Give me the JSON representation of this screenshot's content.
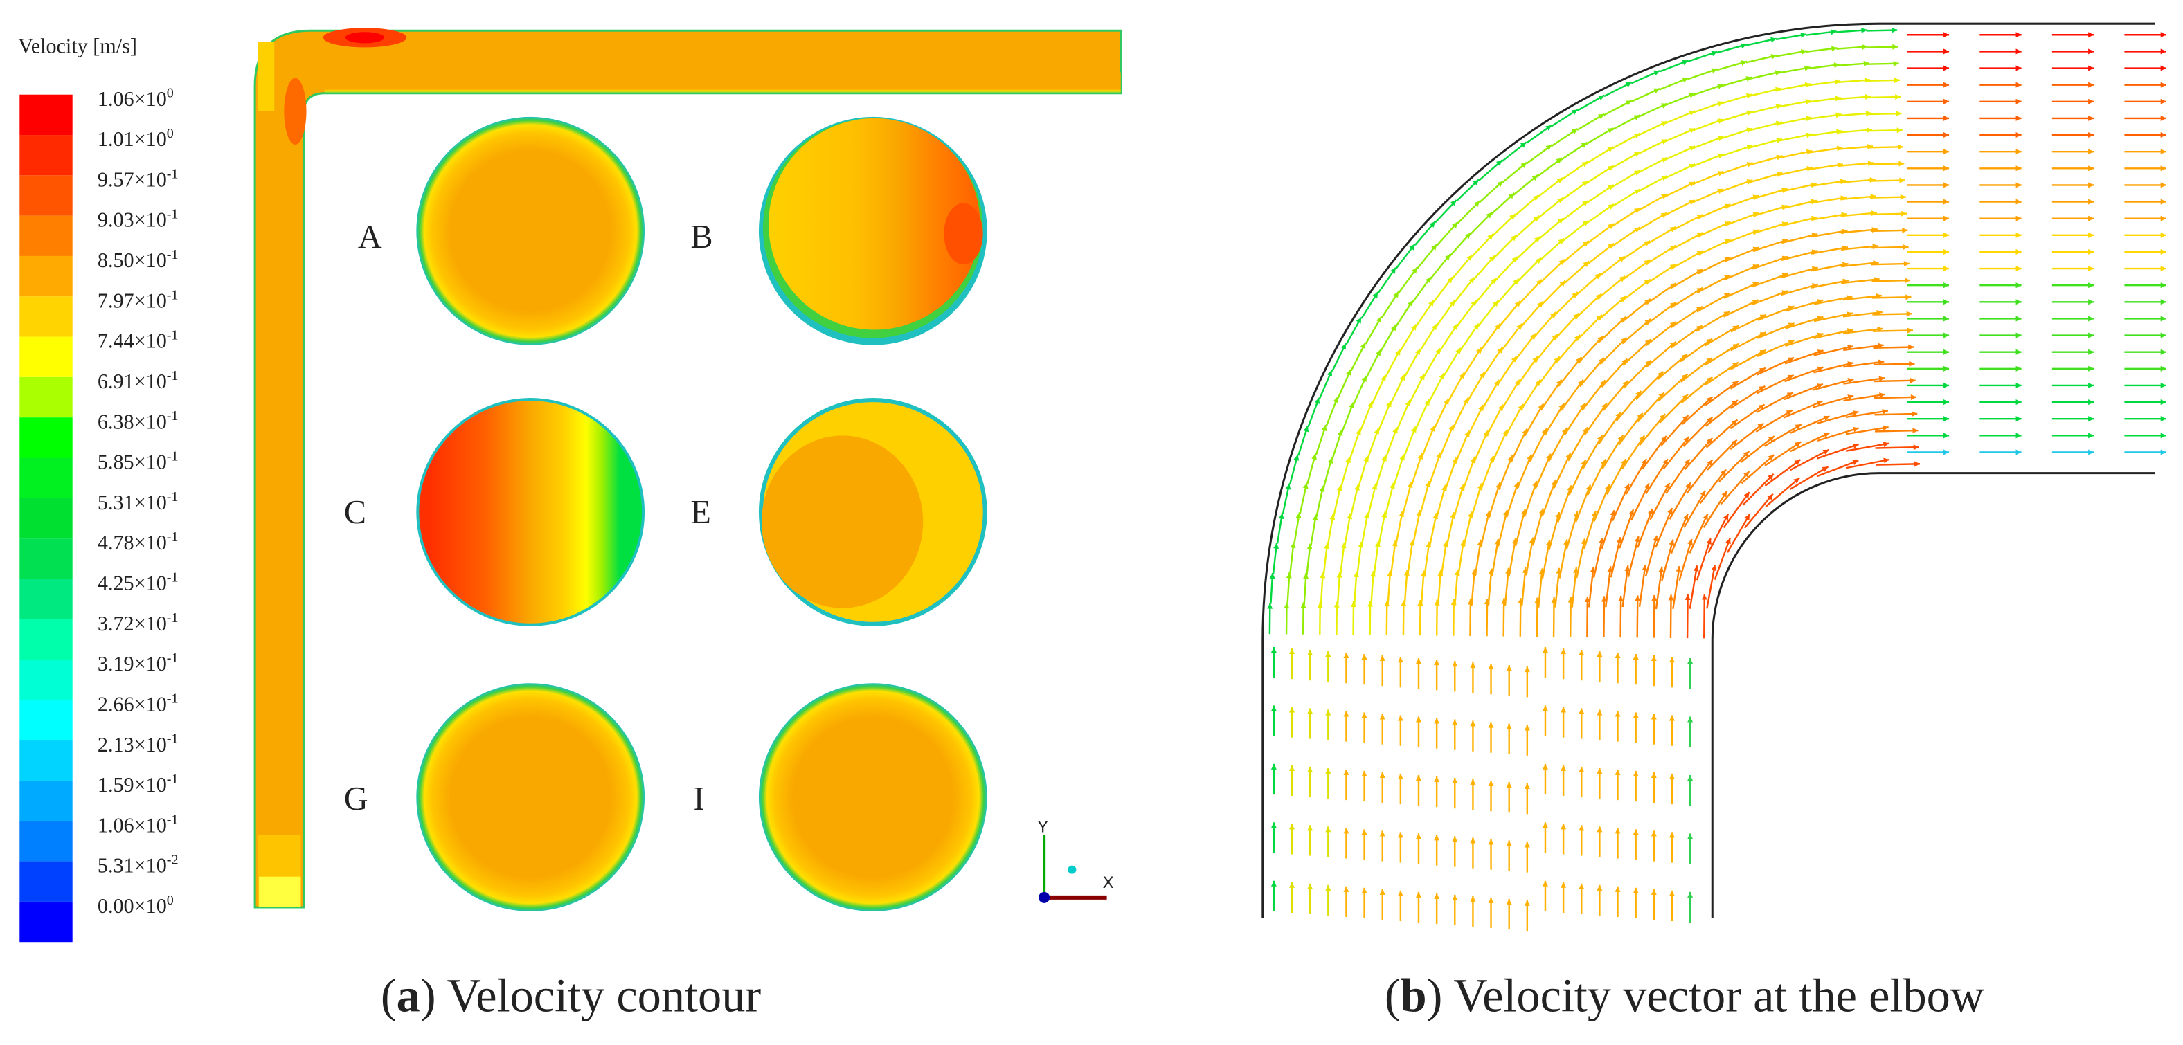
{
  "legend": {
    "title": "Velocity [m/s]",
    "levels": [
      {
        "mantissa": "1.06×10",
        "exponent": "0",
        "color": "#ff0000"
      },
      {
        "mantissa": "1.01×10",
        "exponent": "0",
        "color": "#ff2a00"
      },
      {
        "mantissa": "9.57×10",
        "exponent": "-1",
        "color": "#ff5500"
      },
      {
        "mantissa": "9.03×10",
        "exponent": "-1",
        "color": "#ff8000"
      },
      {
        "mantissa": "8.50×10",
        "exponent": "-1",
        "color": "#ffaa00"
      },
      {
        "mantissa": "7.97×10",
        "exponent": "-1",
        "color": "#ffd400"
      },
      {
        "mantissa": "7.44×10",
        "exponent": "-1",
        "color": "#ffff00"
      },
      {
        "mantissa": "6.91×10",
        "exponent": "-1",
        "color": "#aaff00"
      },
      {
        "mantissa": "6.38×10",
        "exponent": "-1",
        "color": "#00ff00"
      },
      {
        "mantissa": "5.85×10",
        "exponent": "-1",
        "color": "#00f020"
      },
      {
        "mantissa": "5.31×10",
        "exponent": "-1",
        "color": "#00e030"
      },
      {
        "mantissa": "4.78×10",
        "exponent": "-1",
        "color": "#00e050"
      },
      {
        "mantissa": "4.25×10",
        "exponent": "-1",
        "color": "#00e880"
      },
      {
        "mantissa": "3.72×10",
        "exponent": "-1",
        "color": "#00ffaa"
      },
      {
        "mantissa": "3.19×10",
        "exponent": "-1",
        "color": "#00ffd4"
      },
      {
        "mantissa": "2.66×10",
        "exponent": "-1",
        "color": "#00ffff"
      },
      {
        "mantissa": "2.13×10",
        "exponent": "-1",
        "color": "#00d4ff"
      },
      {
        "mantissa": "1.59×10",
        "exponent": "-1",
        "color": "#00aaff"
      },
      {
        "mantissa": "1.06×10",
        "exponent": "-1",
        "color": "#0080ff"
      },
      {
        "mantissa": "5.31×10",
        "exponent": "-2",
        "color": "#0040ff"
      },
      {
        "mantissa": "0.00×10",
        "exponent": "0",
        "color": "#0000ff"
      }
    ]
  },
  "sections": [
    {
      "label": "A"
    },
    {
      "label": "B"
    },
    {
      "label": "C"
    },
    {
      "label": "E"
    },
    {
      "label": "G"
    },
    {
      "label": "I"
    }
  ],
  "axes": {
    "y": "Y",
    "x": "X"
  },
  "captions": [
    {
      "prefix": "(",
      "label": "a",
      "suffix": ") Velocity contour"
    },
    {
      "prefix": "(",
      "label": "b",
      "suffix": ") Velocity vector at the elbow"
    }
  ]
}
